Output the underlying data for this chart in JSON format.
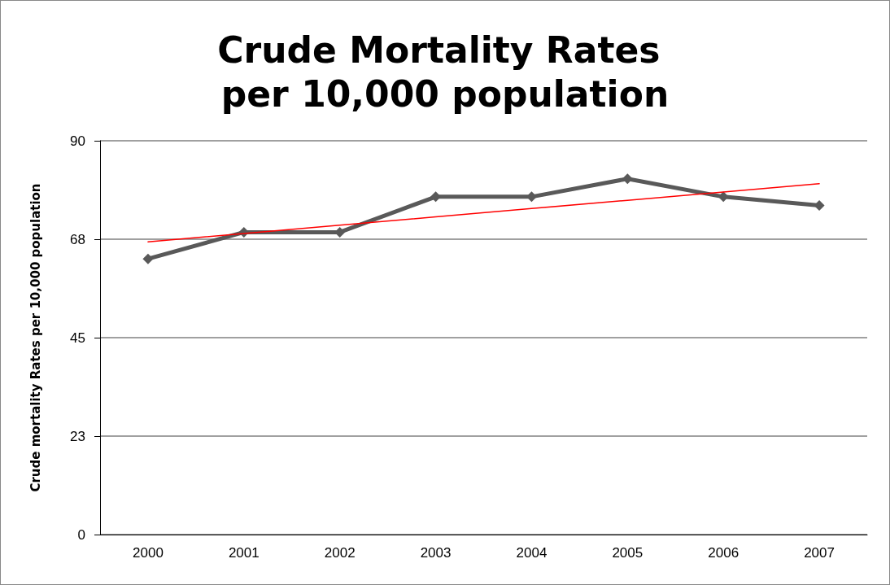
{
  "chart_data": {
    "type": "line",
    "title": "Crude Mortality Rates per 10,000 population",
    "ylabel": "Crude mortality Rates per 10,000 population",
    "categories": [
      "2000",
      "2001",
      "2002",
      "2003",
      "2004",
      "2005",
      "2006",
      "2007"
    ],
    "series": [
      {
        "color": "#595959",
        "values": [
          63.0,
          69.1,
          69.1,
          77.2,
          77.2,
          81.3,
          77.2,
          75.2
        ]
      },
      {
        "type": "line",
        "color": "#ff0000",
        "values": [
          66.9,
          68.8,
          70.7,
          72.6,
          74.5,
          76.4,
          78.3,
          80.2
        ],
        "marker": "none"
      }
    ],
    "ylim": [
      0,
      90
    ],
    "yticks": [
      0,
      {
        "value": 22.5,
        "label": "23"
      },
      45,
      {
        "value": 67.5,
        "label": "68"
      },
      90
    ],
    "grid": "y",
    "marker": "diamond"
  }
}
